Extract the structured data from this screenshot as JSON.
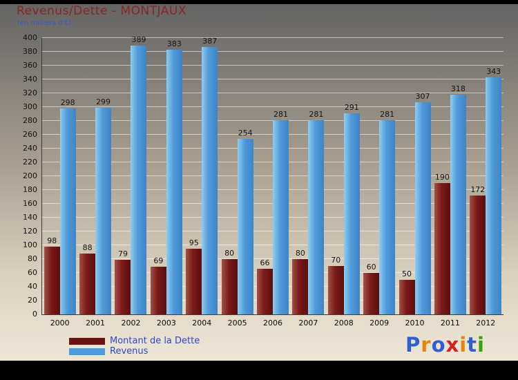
{
  "header": {
    "title": "Revenus/Dette - MONTJAUX",
    "subtitle": "(en milliers d'€)"
  },
  "chart_data": {
    "type": "bar",
    "title": "Revenus/Dette - MONTJAUX",
    "subtitle": "(en milliers d'€)",
    "categories": [
      "2000",
      "2001",
      "2002",
      "2003",
      "2004",
      "2005",
      "2006",
      "2007",
      "2008",
      "2009",
      "2010",
      "2011",
      "2012"
    ],
    "series": [
      {
        "name": "Montant de la Dette",
        "color": "#6d1212",
        "values": [
          98,
          88,
          79,
          69,
          95,
          80,
          66,
          80,
          70,
          60,
          50,
          190,
          172
        ]
      },
      {
        "name": "Revenus",
        "color": "#4e9ada",
        "values": [
          298,
          299,
          389,
          383,
          387,
          254,
          281,
          281,
          291,
          281,
          307,
          318,
          343
        ]
      }
    ],
    "ylim": [
      0,
      400
    ],
    "ytick_step": 20,
    "grid": true,
    "legend_position": "bottom"
  },
  "legend": {
    "items": [
      {
        "label": "Montant de la Dette",
        "color": "#6d1212"
      },
      {
        "label": "Revenus",
        "color": "#4e9ada"
      }
    ]
  },
  "logo": {
    "letters": [
      {
        "ch": "P",
        "color": "#2f5fd0"
      },
      {
        "ch": "r",
        "color": "#e8820c"
      },
      {
        "ch": "o",
        "color": "#2f5fd0"
      },
      {
        "ch": "x",
        "color": "#d42020"
      },
      {
        "ch": "i",
        "color": "#e8820c"
      },
      {
        "ch": "t",
        "color": "#2f5fd0"
      },
      {
        "ch": "i",
        "color": "#3aa010"
      }
    ]
  }
}
